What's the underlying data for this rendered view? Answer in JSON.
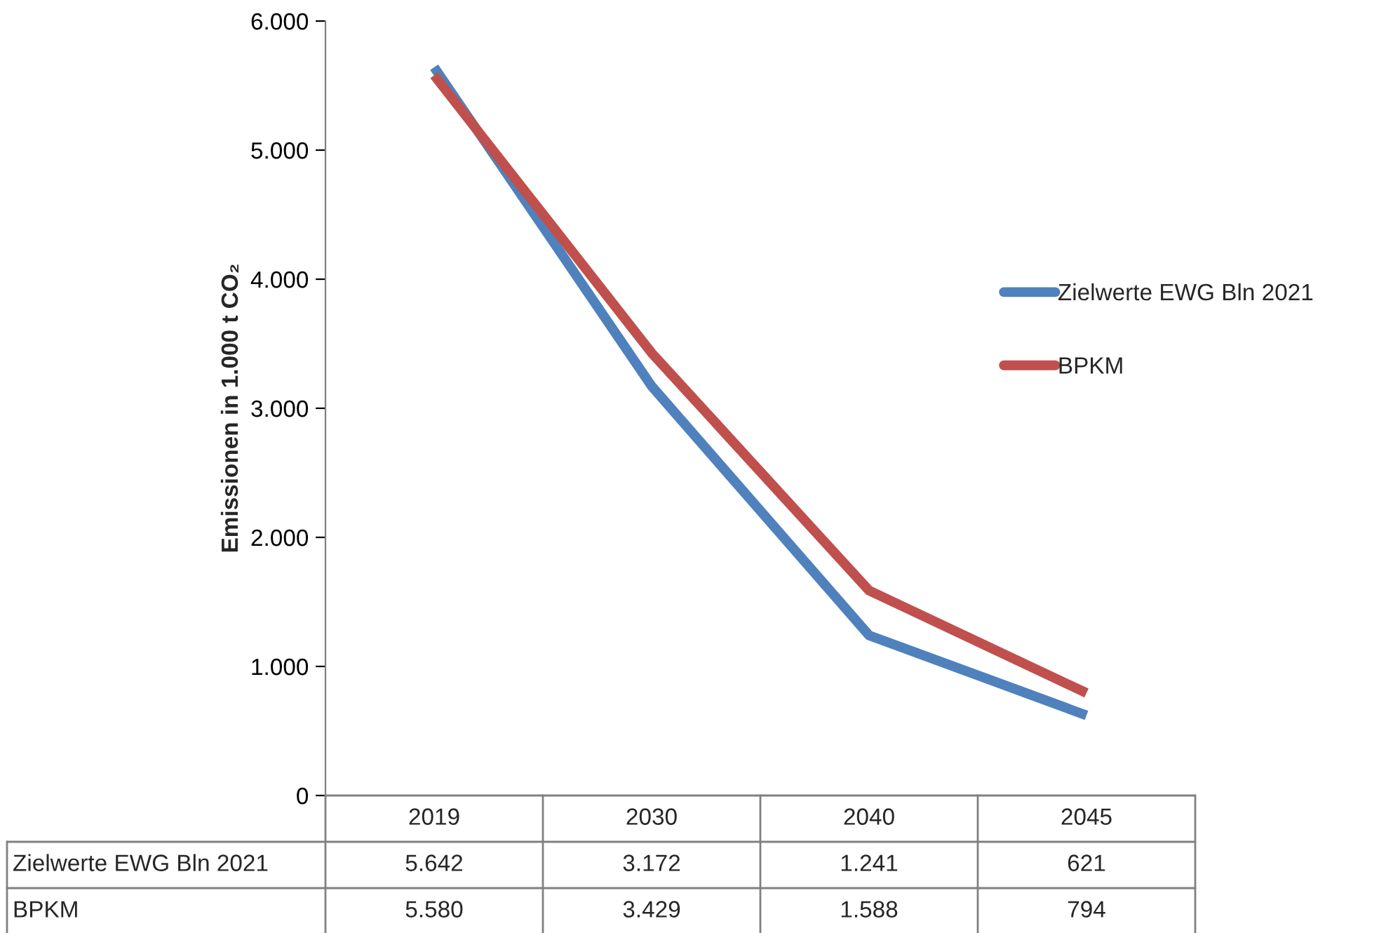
{
  "chart_data": {
    "type": "line",
    "ylabel": "Emissionen in 1.000 t CO₂",
    "categories": [
      "2019",
      "2030",
      "2040",
      "2045"
    ],
    "series": [
      {
        "name": "Zielwerte EWG Bln 2021",
        "color": "#4f81bd",
        "values": [
          5642,
          3172,
          1241,
          621
        ],
        "value_labels": [
          "5.642",
          "3.172",
          "1.241",
          "621"
        ]
      },
      {
        "name": "BPKM",
        "color": "#c0504d",
        "values": [
          5580,
          3429,
          1588,
          794
        ],
        "value_labels": [
          "5.580",
          "3.429",
          "1.588",
          "794"
        ]
      }
    ],
    "ylim": [
      0,
      6000
    ],
    "yticks": [
      0,
      {
        "value": 1000,
        "label": "1.000"
      },
      {
        "value": 2000,
        "label": "2.000"
      },
      {
        "value": 3000,
        "label": "3.000"
      },
      {
        "value": 4000,
        "label": "4.000"
      },
      {
        "value": 5000,
        "label": "5.000"
      },
      {
        "value": 6000,
        "label": "6.000"
      }
    ],
    "legend": "right",
    "grid": false,
    "marker": "none",
    "line_style": "solid"
  }
}
